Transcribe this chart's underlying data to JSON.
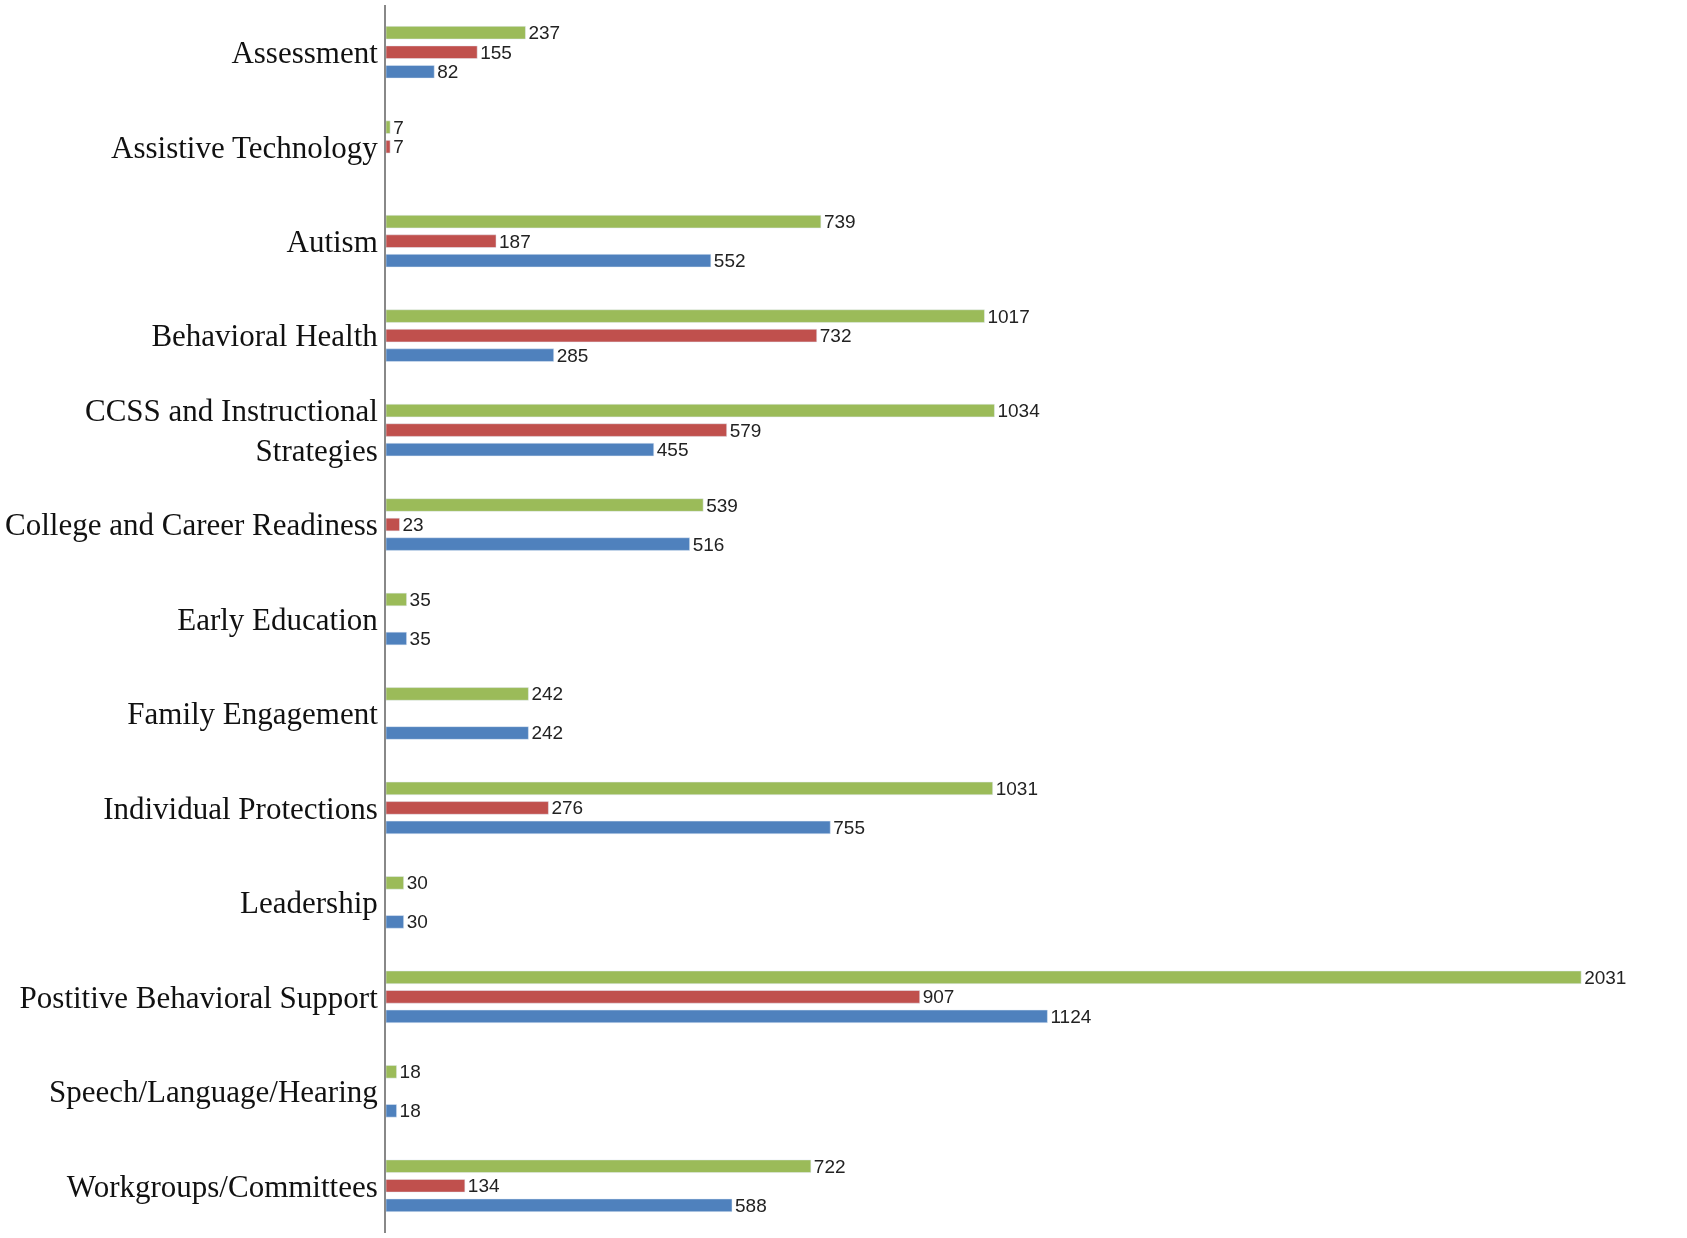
{
  "chart_data": {
    "type": "bar",
    "orientation": "horizontal",
    "categories": [
      "Assessment",
      "Assistive Technology",
      "Autism",
      "Behavioral Health",
      "CCSS and Instructional Strategies",
      "College and Career Readiness",
      "Early Education",
      "Family Engagement",
      "Individual Protections",
      "Leadership",
      "Postitive Behavioral Support",
      "Speech/Language/Hearing",
      "Workgroups/Committees"
    ],
    "series": [
      {
        "color": "#9bbb59",
        "values": [
          237,
          7,
          739,
          1017,
          1034,
          539,
          35,
          242,
          1031,
          30,
          2031,
          18,
          722
        ]
      },
      {
        "color": "#c0504d",
        "values": [
          155,
          7,
          187,
          732,
          579,
          23,
          null,
          null,
          276,
          null,
          907,
          null,
          134
        ]
      },
      {
        "color": "#4f81bd",
        "values": [
          82,
          null,
          552,
          285,
          455,
          516,
          35,
          242,
          755,
          30,
          1124,
          18,
          588
        ]
      }
    ],
    "data_labels": true
  }
}
